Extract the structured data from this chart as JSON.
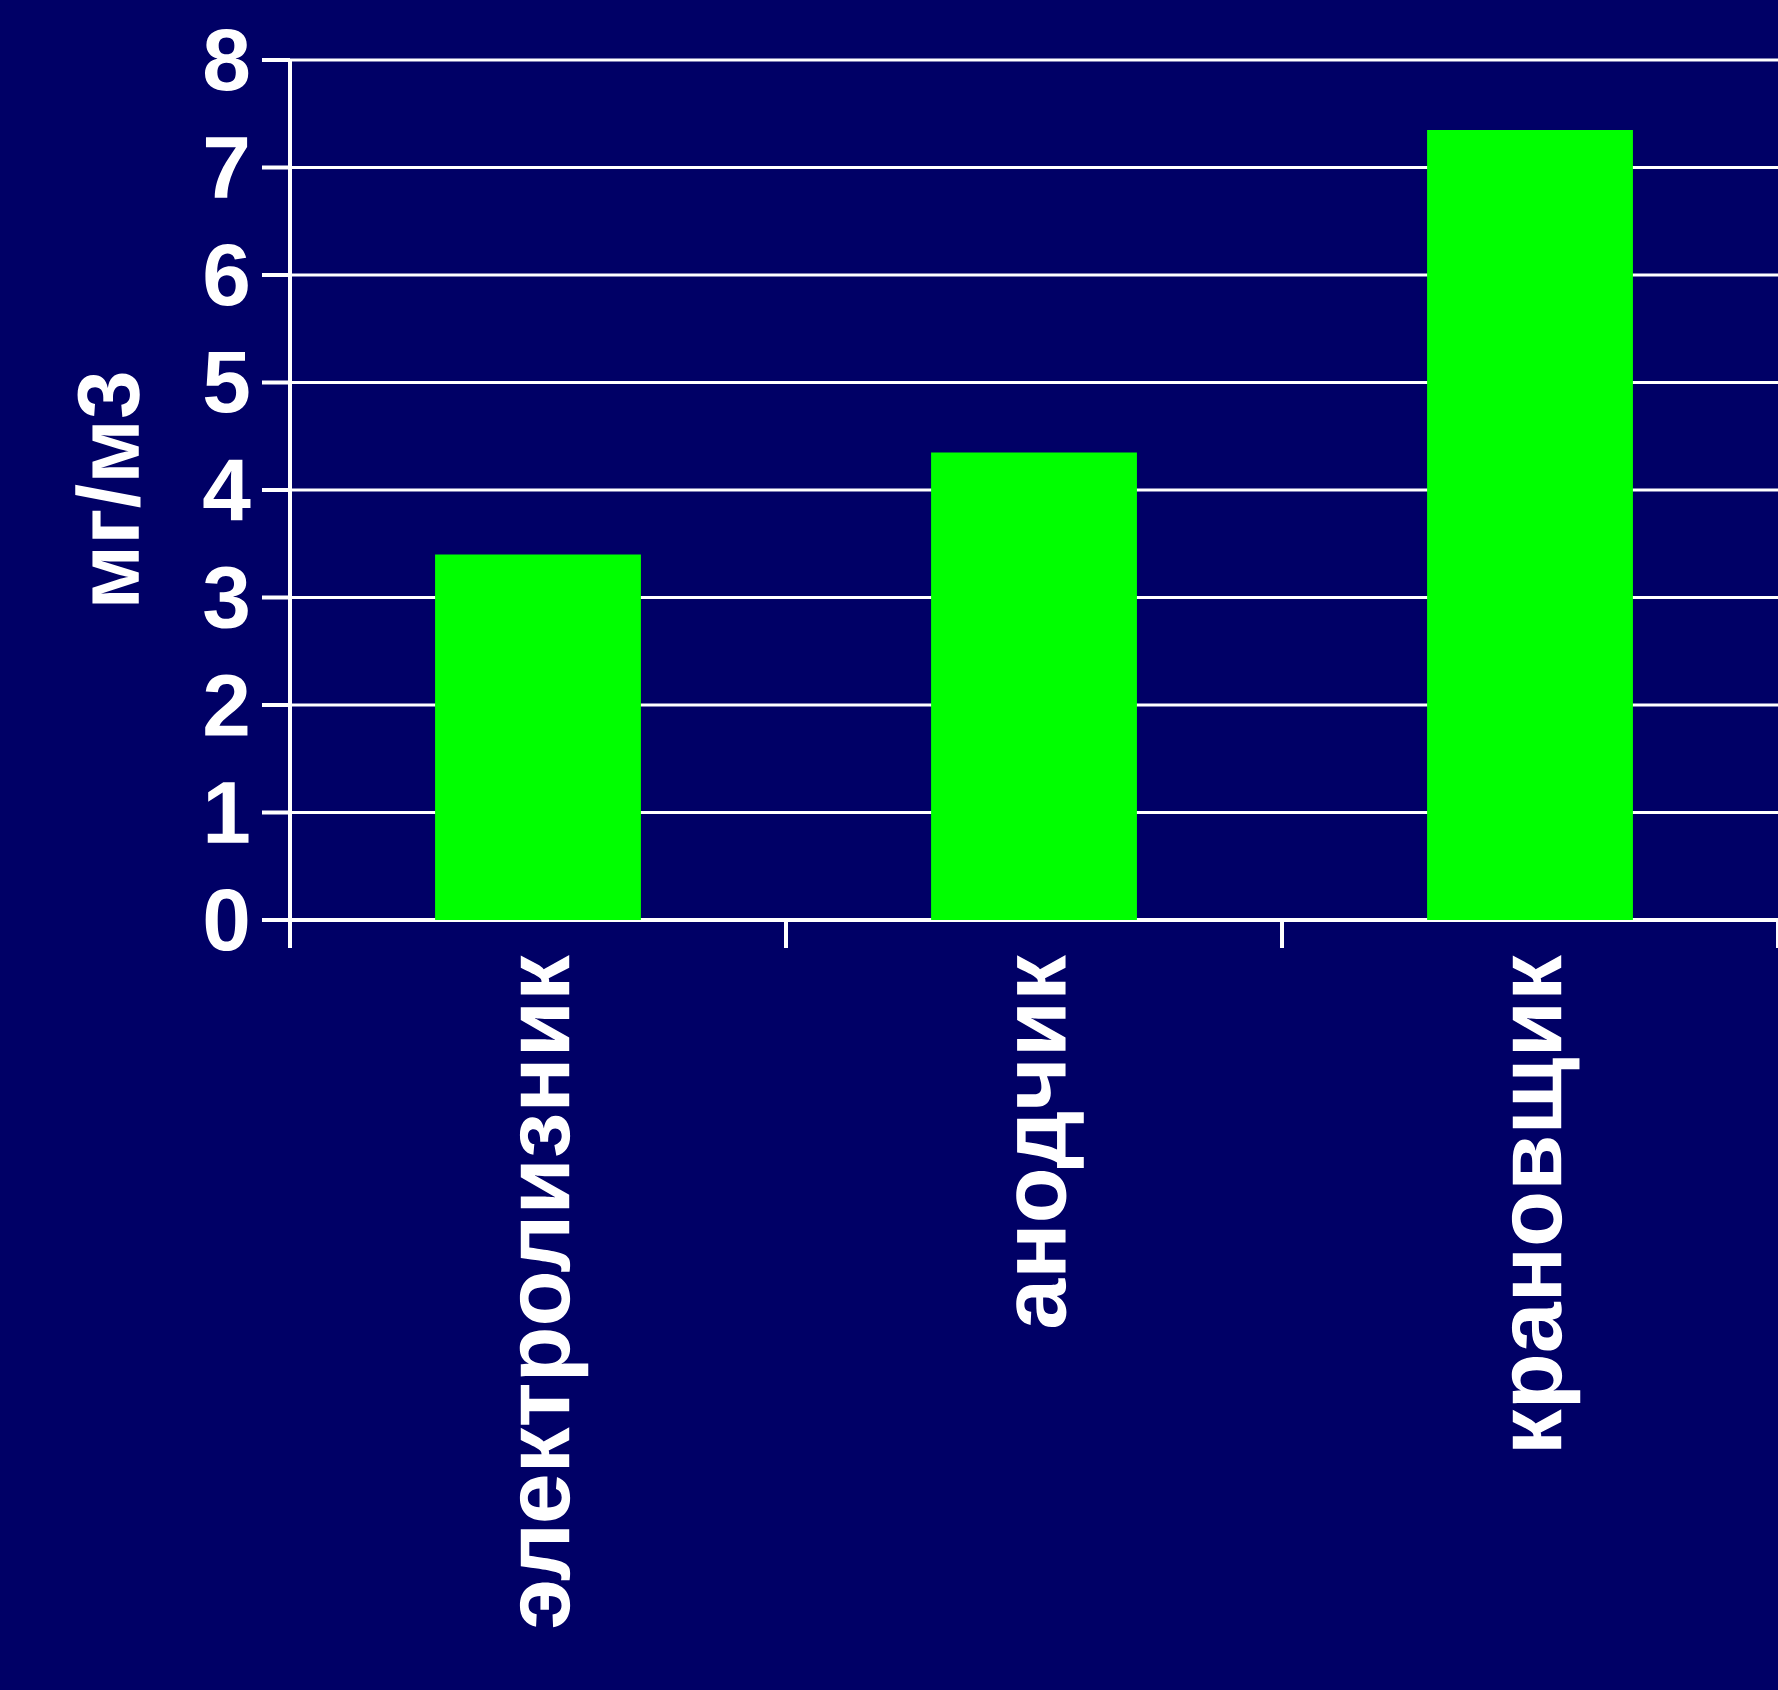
{
  "chart_data": {
    "type": "bar",
    "ylabel": "мг/м3",
    "categories": [
      "электролизник",
      "анодчик",
      "крановщик"
    ],
    "values": [
      3.4,
      4.35,
      7.35
    ],
    "color": "#00ff00",
    "ylim": [
      0,
      8
    ],
    "yticks": [
      0,
      1,
      2,
      3,
      4,
      5,
      6,
      7,
      8
    ],
    "grid": "y"
  }
}
